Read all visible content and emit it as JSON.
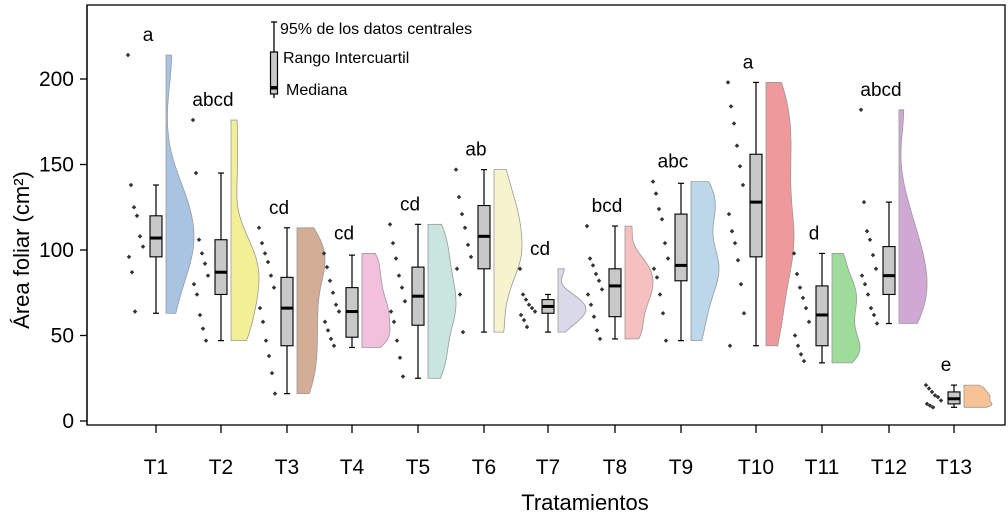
{
  "chart_data": {
    "type": "raincloud",
    "title": "",
    "xlabel": "Tratamientos",
    "ylabel": "Área foliar (cm²)",
    "ylim": [
      0,
      230
    ],
    "yticks": [
      0,
      50,
      100,
      150,
      200
    ],
    "legend": {
      "placement": "top-left",
      "whisker_label": "95% de los datos centrales",
      "box_label": "Rango Intercuartil",
      "median_label": "Mediana"
    },
    "categories": [
      "T1",
      "T2",
      "T3",
      "T4",
      "T5",
      "T6",
      "T7",
      "T8",
      "T9",
      "T10",
      "T11",
      "T12",
      "T13"
    ],
    "significance": [
      "a",
      "abcd",
      "cd",
      "cd",
      "cd",
      "ab",
      "cd",
      "bcd",
      "abc",
      "a",
      "d",
      "abcd",
      "e"
    ],
    "boxes": [
      {
        "low": 63,
        "q1": 96,
        "median": 107,
        "q3": 120,
        "high": 138
      },
      {
        "low": 47,
        "q1": 74,
        "median": 87,
        "q3": 106,
        "high": 145
      },
      {
        "low": 16,
        "q1": 44,
        "median": 66,
        "q3": 84,
        "high": 113
      },
      {
        "low": 43,
        "q1": 49,
        "median": 64,
        "q3": 78,
        "high": 97
      },
      {
        "low": 25,
        "q1": 56,
        "median": 73,
        "q3": 90,
        "high": 115
      },
      {
        "low": 52,
        "q1": 89,
        "median": 108,
        "q3": 126,
        "high": 147
      },
      {
        "low": 52,
        "q1": 63,
        "median": 67,
        "q3": 71,
        "high": 74
      },
      {
        "low": 48,
        "q1": 61,
        "median": 79,
        "q3": 89,
        "high": 114
      },
      {
        "low": 47,
        "q1": 82,
        "median": 91,
        "q3": 121,
        "high": 139
      },
      {
        "low": 44,
        "q1": 96,
        "median": 128,
        "q3": 156,
        "high": 198
      },
      {
        "low": 34,
        "q1": 44,
        "median": 62,
        "q3": 79,
        "high": 98
      },
      {
        "low": 57,
        "q1": 74,
        "median": 85,
        "q3": 102,
        "high": 128
      },
      {
        "low": 8,
        "q1": 10,
        "median": 13,
        "q3": 17,
        "high": 21
      }
    ],
    "points": [
      [
        214,
        138,
        125,
        120,
        108,
        102,
        96,
        87,
        64
      ],
      [
        176,
        145,
        106,
        98,
        92,
        85,
        80,
        74,
        62,
        54,
        47
      ],
      [
        113,
        104,
        98,
        93,
        85,
        78,
        66,
        58,
        47,
        38,
        28,
        16
      ],
      [
        98,
        90,
        82,
        75,
        68,
        64,
        58,
        53,
        48,
        44
      ],
      [
        115,
        104,
        95,
        85,
        78,
        70,
        64,
        58,
        47,
        37,
        26
      ],
      [
        147,
        131,
        121,
        113,
        103,
        96,
        89,
        74,
        52
      ],
      [
        89,
        74,
        71,
        68,
        66,
        64,
        62,
        59,
        55
      ],
      [
        114,
        95,
        91,
        86,
        82,
        77,
        74,
        68,
        61,
        53,
        48
      ],
      [
        140,
        133,
        124,
        118,
        104,
        95,
        89,
        84,
        74,
        63,
        47
      ],
      [
        198,
        184,
        174,
        161,
        149,
        138,
        121,
        111,
        104,
        94,
        80,
        63,
        44
      ],
      [
        98,
        86,
        78,
        72,
        66,
        58,
        50,
        44,
        39,
        35
      ],
      [
        182,
        128,
        111,
        106,
        97,
        89,
        85,
        80,
        74,
        66,
        62,
        57
      ],
      [
        21,
        19,
        17,
        15,
        14,
        12,
        10,
        9,
        8
      ]
    ],
    "cloud_colors": [
      "#a9c4e3",
      "#f3ef96",
      "#d3ad96",
      "#f2bfdd",
      "#c8e6df",
      "#f6f3cf",
      "#dad9ea",
      "#f7c0c0",
      "#bcd6ea",
      "#ee9a9c",
      "#9edc9b",
      "#cfa9d3",
      "#f7c294"
    ]
  }
}
